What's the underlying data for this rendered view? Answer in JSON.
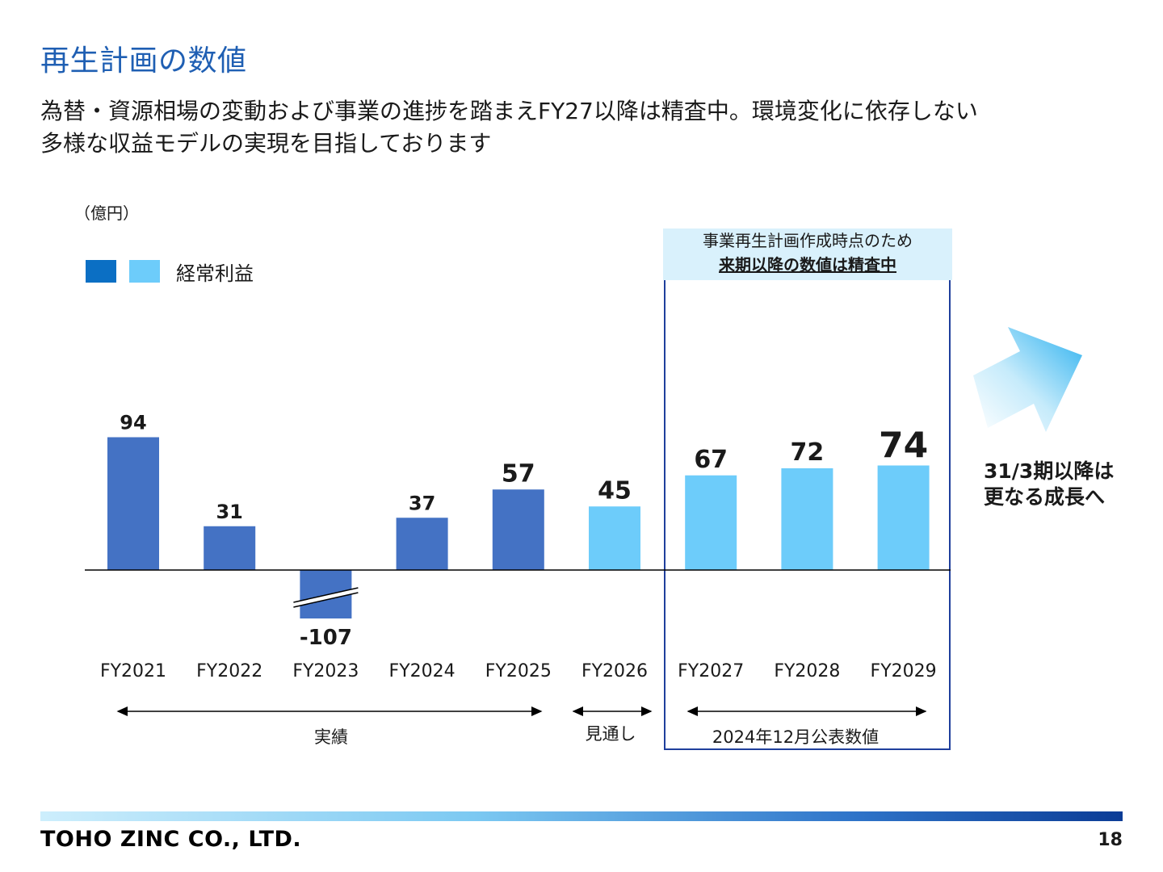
{
  "header": {
    "title": "再生計画の数値",
    "subtitle_line1": "為替・資源相場の変動および事業の進捗を踏まえFY27以降は精査中。環境変化に依存しない",
    "subtitle_line2": "多様な収益モデルの実現を目指しております"
  },
  "chart_data": {
    "type": "bar",
    "unit_label": "（億円）",
    "legend": {
      "label": "経常利益",
      "colors": [
        "#0b6fc4",
        "#6dccfa"
      ]
    },
    "categories": [
      "FY2021",
      "FY2022",
      "FY2023",
      "FY2024",
      "FY2025",
      "FY2026",
      "FY2027",
      "FY2028",
      "FY2029"
    ],
    "values": [
      94,
      31,
      -107,
      37,
      57,
      45,
      67,
      72,
      74
    ],
    "value_labels": [
      "94",
      "31",
      "-107",
      "37",
      "57",
      "45",
      "67",
      "72",
      "74"
    ],
    "series_kind": [
      "actual",
      "actual",
      "actual",
      "actual",
      "actual",
      "forecast",
      "plan",
      "plan",
      "plan"
    ],
    "bar_colors": {
      "actual": "#4472c4",
      "forecast": "#6dccfa",
      "plan": "#6dccfa"
    },
    "axis_break_on": "FY2023",
    "periods": [
      {
        "label": "実績",
        "from": "FY2021",
        "to": "FY2025"
      },
      {
        "label": "見通し",
        "from": "FY2026",
        "to": "FY2026"
      },
      {
        "label": "2024年12月公表数値",
        "from": "FY2027",
        "to": "FY2029"
      }
    ]
  },
  "note": {
    "line1": "事業再生計画作成時点のため",
    "line2": "来期以降の数値は精査中"
  },
  "growth_text": {
    "line1": "31/3期以降は",
    "line2": "更なる成長へ"
  },
  "footer": {
    "company": "TOHO ZINC CO., LTD.",
    "page": "18"
  }
}
